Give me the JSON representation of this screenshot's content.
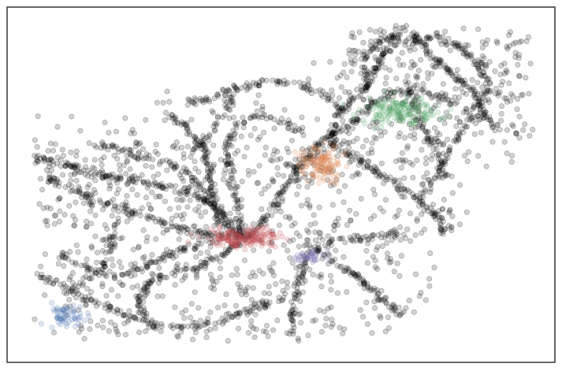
{
  "chart_data": {
    "type": "scatter",
    "title": "",
    "xlabel": "",
    "ylabel": "",
    "axes_visible": false,
    "ticks_visible": false,
    "grid": false,
    "legend": "none",
    "frame": true,
    "xlim": [
      0,
      100
    ],
    "ylim": [
      0,
      100
    ],
    "point_opacity": 0.18,
    "colors": {
      "noise": "#000000",
      "cluster_1": "#c44e52",
      "cluster_2": "#dd8452",
      "cluster_3": "#55a868",
      "cluster_4": "#8172b3",
      "cluster_5": "#4c72b0",
      "frame": "#333333"
    },
    "background_points": {
      "color": "#000000",
      "roads": [
        {
          "density": 14,
          "points": [
            [
              4.5,
              58
            ],
            [
              9,
              56
            ],
            [
              14,
              54
            ],
            [
              20,
              52
            ],
            [
              27,
              50
            ],
            [
              33,
              48
            ],
            [
              38,
              44
            ],
            [
              41,
              38
            ],
            [
              43.5,
              35
            ]
          ]
        },
        {
          "density": 12,
          "points": [
            [
              7,
              52
            ],
            [
              13,
              48
            ],
            [
              19,
              44
            ],
            [
              25,
              41
            ],
            [
              31,
              38
            ],
            [
              37,
              36
            ],
            [
              43.5,
              35
            ]
          ]
        },
        {
          "density": 10,
          "points": [
            [
              17,
              61
            ],
            [
              23,
              59
            ],
            [
              28,
              57
            ],
            [
              32,
              54
            ],
            [
              35,
              50
            ],
            [
              37,
              45
            ]
          ]
        },
        {
          "density": 12,
          "points": [
            [
              29,
              70
            ],
            [
              33,
              66
            ],
            [
              36,
              60
            ],
            [
              37,
              53
            ],
            [
              37.5,
              46
            ],
            [
              38.5,
              40
            ],
            [
              42,
              36
            ]
          ]
        },
        {
          "density": 12,
          "points": [
            [
              43.5,
              35
            ],
            [
              47,
              40
            ],
            [
              50,
              47
            ],
            [
              53,
              54
            ],
            [
              56,
              60
            ]
          ]
        },
        {
          "density": 10,
          "points": [
            [
              43,
              35
            ],
            [
              42,
              44
            ],
            [
              41,
              52
            ],
            [
              40,
              60
            ],
            [
              42,
              67
            ],
            [
              46,
              70
            ],
            [
              50,
              68
            ],
            [
              55,
              64
            ]
          ]
        },
        {
          "density": 12,
          "points": [
            [
              43.5,
              35
            ],
            [
              39,
              30
            ],
            [
              35,
              27
            ],
            [
              30,
              25
            ],
            [
              26,
              23
            ],
            [
              24,
              18
            ],
            [
              25,
              12
            ],
            [
              27,
              10
            ],
            [
              33,
              10
            ],
            [
              40,
              12
            ],
            [
              46,
              16
            ],
            [
              51,
              18
            ]
          ]
        },
        {
          "density": 10,
          "points": [
            [
              10,
              30
            ],
            [
              15,
              26
            ],
            [
              20,
              24
            ],
            [
              24,
              26
            ],
            [
              28,
              29
            ],
            [
              32,
              32
            ],
            [
              38,
              34
            ]
          ]
        },
        {
          "density": 10,
          "points": [
            [
              5,
              25
            ],
            [
              8,
              23
            ],
            [
              12,
              20
            ],
            [
              16,
              17
            ],
            [
              20,
              14
            ],
            [
              25,
              12
            ]
          ]
        },
        {
          "density": 12,
          "points": [
            [
              56,
              32
            ],
            [
              60,
              28
            ],
            [
              64,
              24
            ],
            [
              67,
              20
            ],
            [
              70,
              16
            ],
            [
              72,
              13
            ]
          ]
        },
        {
          "density": 10,
          "points": [
            [
              56,
              32
            ],
            [
              60,
              34
            ],
            [
              65,
              35
            ],
            [
              70,
              36
            ],
            [
              74,
              34
            ]
          ]
        },
        {
          "density": 10,
          "points": [
            [
              55,
              31
            ],
            [
              54,
              26
            ],
            [
              53,
              20
            ],
            [
              52,
              14
            ],
            [
              52,
              8
            ]
          ]
        },
        {
          "density": 12,
          "points": [
            [
              56,
              60
            ],
            [
              59,
              64
            ],
            [
              61,
              70
            ],
            [
              63,
              74
            ],
            [
              66,
              78
            ],
            [
              68,
              84
            ],
            [
              70,
              90
            ],
            [
              72,
              94
            ]
          ]
        },
        {
          "density": 10,
          "points": [
            [
              58,
              63
            ],
            [
              62,
              66
            ],
            [
              66,
              72
            ],
            [
              70,
              76
            ],
            [
              75,
              77
            ],
            [
              80,
              74
            ],
            [
              85,
              70
            ]
          ]
        },
        {
          "density": 12,
          "points": [
            [
              59,
              62
            ],
            [
              63,
              58
            ],
            [
              67,
              54
            ],
            [
              71,
              50
            ],
            [
              75,
              46
            ],
            [
              78,
              42
            ],
            [
              80,
              36
            ]
          ]
        },
        {
          "density": 10,
          "points": [
            [
              66,
              78
            ],
            [
              65,
              84
            ],
            [
              66,
              88
            ],
            [
              70,
              92
            ],
            [
              74,
              90
            ],
            [
              78,
              92
            ],
            [
              82,
              89
            ],
            [
              86,
              84
            ],
            [
              88,
              77
            ],
            [
              85,
              71
            ]
          ]
        },
        {
          "density": 12,
          "points": [
            [
              73,
              94
            ],
            [
              75,
              91
            ],
            [
              77,
              87
            ],
            [
              79,
              84
            ],
            [
              82,
              80
            ],
            [
              85,
              76
            ],
            [
              87,
              70
            ],
            [
              89,
              66
            ]
          ]
        },
        {
          "density": 10,
          "points": [
            [
              73,
              80
            ],
            [
              74,
              74
            ],
            [
              75,
              69
            ],
            [
              77,
              63
            ],
            [
              79,
              57
            ],
            [
              80,
              52
            ]
          ]
        },
        {
          "density": 10,
          "points": [
            [
              61,
              71
            ],
            [
              58,
              75
            ],
            [
              54,
              78
            ],
            [
              49,
              79
            ],
            [
              44,
              78
            ],
            [
              40,
              76
            ],
            [
              36,
              74
            ],
            [
              31,
              73
            ]
          ]
        },
        {
          "density": 8,
          "points": [
            [
              42,
              78
            ],
            [
              40,
              72
            ],
            [
              38,
              66
            ],
            [
              36,
              62
            ],
            [
              33,
              59
            ]
          ]
        },
        {
          "density": 8,
          "points": [
            [
              48,
              58
            ],
            [
              52,
              55
            ],
            [
              56,
              58
            ],
            [
              60,
              62
            ]
          ]
        },
        {
          "density": 8,
          "points": [
            [
              75,
              45
            ],
            [
              78,
              52
            ],
            [
              81,
              60
            ],
            [
              83,
              65
            ],
            [
              86,
              70
            ]
          ]
        },
        {
          "density": 8,
          "points": [
            [
              20,
              40
            ],
            [
              19,
              34
            ],
            [
              18,
              28
            ],
            [
              15,
              23
            ],
            [
              11,
              20
            ]
          ]
        }
      ],
      "scatter": [
        {
          "x": [
            5,
            95
          ],
          "y": [
            8,
            92
          ],
          "count": 520
        },
        {
          "x": [
            60,
            96
          ],
          "y": [
            62,
            94
          ],
          "count": 240
        },
        {
          "x": [
            6,
            40
          ],
          "y": [
            38,
            62
          ],
          "count": 160
        },
        {
          "x": [
            10,
            70
          ],
          "y": [
            6,
            36
          ],
          "count": 200
        },
        {
          "x": [
            44,
            82
          ],
          "y": [
            36,
            64
          ],
          "count": 120
        }
      ],
      "mask": [
        {
          "x": [
            0,
            11
          ],
          "y": [
            78,
            100
          ]
        },
        {
          "x": [
            0,
            27
          ],
          "y": [
            70,
            100
          ]
        },
        {
          "x": [
            0,
            55
          ],
          "y": [
            78,
            100
          ]
        },
        {
          "x": [
            0,
            62
          ],
          "y": [
            85,
            100
          ]
        },
        {
          "x": [
            84,
            100
          ],
          "y": [
            0,
            55
          ]
        },
        {
          "x": [
            78,
            100
          ],
          "y": [
            0,
            35
          ]
        },
        {
          "x": [
            0,
            4
          ],
          "y": [
            0,
            100
          ]
        },
        {
          "x": [
            75,
            100
          ],
          "y": [
            0,
            14
          ]
        }
      ]
    },
    "clusters": [
      {
        "label": "1",
        "color": "#c44e52",
        "center": [
          43.5,
          35
        ],
        "spread": [
          6.5,
          2.3
        ],
        "count": 170
      },
      {
        "label": "2",
        "color": "#dd8452",
        "center": [
          57.5,
          56
        ],
        "spread": [
          3.6,
          4.2
        ],
        "count": 130
      },
      {
        "label": "3",
        "color": "#55a868",
        "center": [
          71.5,
          71
        ],
        "spread": [
          6.5,
          3.5
        ],
        "count": 160
      },
      {
        "label": "4",
        "color": "#8172b3",
        "center": [
          55.5,
          30
        ],
        "spread": [
          2.4,
          1.4
        ],
        "count": 40
      },
      {
        "label": "5",
        "color": "#4c72b0",
        "center": [
          11,
          13
        ],
        "spread": [
          3.2,
          3.2
        ],
        "count": 60
      }
    ]
  }
}
